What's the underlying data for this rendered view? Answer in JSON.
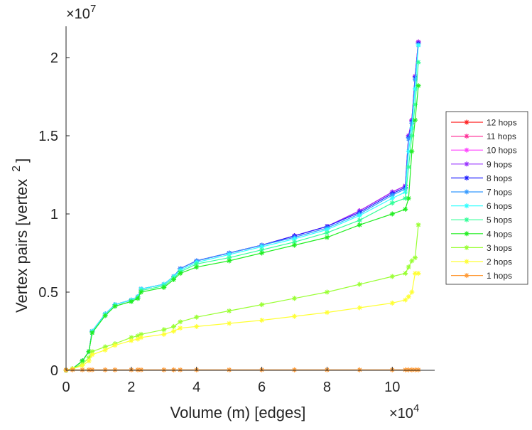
{
  "chart_data": {
    "type": "line",
    "title": "",
    "xlabel": "Volume (m) [edges]",
    "ylabel_parts": {
      "main": "Vertex pairs [vertex",
      "sup": "2",
      "close": "]"
    },
    "ylabel": "Vertex pairs [vertex^2]",
    "x_multiplier": {
      "base": "×10",
      "exp": "4"
    },
    "y_multiplier": {
      "base": "×10",
      "exp": "7"
    },
    "xlim": [
      0,
      11.3
    ],
    "ylim": [
      0,
      2.2
    ],
    "xticks": [
      0,
      2,
      4,
      6,
      8,
      10
    ],
    "xtick_labels": [
      "0",
      "2",
      "4",
      "6",
      "8",
      "10"
    ],
    "yticks": [
      0,
      0.5,
      1,
      1.5,
      2
    ],
    "ytick_labels": [
      "0",
      "0.5",
      "1",
      "1.5",
      "2"
    ],
    "grid": false,
    "legend_position": "outside-right",
    "x": [
      0,
      0.2,
      0.5,
      0.7,
      0.8,
      1.2,
      1.5,
      2,
      2.2,
      2.3,
      3,
      3.3,
      3.5,
      4,
      5,
      6,
      7,
      8,
      9,
      10,
      10.4,
      10.5,
      10.6,
      10.7,
      10.8
    ],
    "series": [
      {
        "name": "12 hops",
        "color": "#ff2020",
        "values": [
          0,
          0.01,
          0.06,
          0.12,
          0.25,
          0.36,
          0.42,
          0.45,
          0.47,
          0.52,
          0.55,
          0.6,
          0.65,
          0.7,
          0.75,
          0.8,
          0.86,
          0.92,
          1.02,
          1.14,
          1.18,
          1.5,
          1.6,
          1.88,
          2.1
        ]
      },
      {
        "name": "11 hops",
        "color": "#ff3399",
        "values": [
          0,
          0.01,
          0.06,
          0.12,
          0.25,
          0.36,
          0.42,
          0.45,
          0.47,
          0.52,
          0.55,
          0.6,
          0.65,
          0.7,
          0.75,
          0.8,
          0.86,
          0.92,
          1.02,
          1.14,
          1.18,
          1.5,
          1.6,
          1.88,
          2.1
        ]
      },
      {
        "name": "10 hops",
        "color": "#ff44ff",
        "values": [
          0,
          0.01,
          0.06,
          0.12,
          0.25,
          0.36,
          0.42,
          0.45,
          0.47,
          0.52,
          0.55,
          0.6,
          0.65,
          0.7,
          0.75,
          0.8,
          0.86,
          0.92,
          1.02,
          1.14,
          1.18,
          1.5,
          1.6,
          1.88,
          2.1
        ]
      },
      {
        "name": "9 hops",
        "color": "#9933ff",
        "values": [
          0,
          0.01,
          0.06,
          0.12,
          0.25,
          0.36,
          0.42,
          0.45,
          0.47,
          0.52,
          0.55,
          0.6,
          0.65,
          0.7,
          0.75,
          0.8,
          0.86,
          0.92,
          1.02,
          1.14,
          1.18,
          1.5,
          1.6,
          1.88,
          2.1
        ]
      },
      {
        "name": "8 hops",
        "color": "#2222ff",
        "values": [
          0,
          0.01,
          0.06,
          0.12,
          0.25,
          0.36,
          0.42,
          0.45,
          0.47,
          0.52,
          0.55,
          0.6,
          0.65,
          0.7,
          0.75,
          0.8,
          0.86,
          0.92,
          1.01,
          1.13,
          1.17,
          1.49,
          1.59,
          1.87,
          2.09
        ]
      },
      {
        "name": "7 hops",
        "color": "#3399ff",
        "values": [
          0,
          0.01,
          0.06,
          0.12,
          0.25,
          0.36,
          0.42,
          0.45,
          0.47,
          0.52,
          0.55,
          0.6,
          0.65,
          0.7,
          0.75,
          0.8,
          0.85,
          0.91,
          1.0,
          1.12,
          1.16,
          1.48,
          1.58,
          1.86,
          2.08
        ]
      },
      {
        "name": "6 hops",
        "color": "#33ffff",
        "values": [
          0,
          0.01,
          0.06,
          0.12,
          0.25,
          0.36,
          0.42,
          0.45,
          0.47,
          0.52,
          0.55,
          0.6,
          0.64,
          0.69,
          0.74,
          0.79,
          0.84,
          0.9,
          0.99,
          1.1,
          1.14,
          1.4,
          1.55,
          1.8,
          2.08
        ]
      },
      {
        "name": "5 hops",
        "color": "#33ff99",
        "values": [
          0,
          0.01,
          0.06,
          0.12,
          0.24,
          0.35,
          0.41,
          0.44,
          0.46,
          0.51,
          0.54,
          0.59,
          0.63,
          0.68,
          0.72,
          0.77,
          0.82,
          0.88,
          0.96,
          1.07,
          1.1,
          1.3,
          1.5,
          1.7,
          1.97
        ]
      },
      {
        "name": "4 hops",
        "color": "#22ee22",
        "values": [
          0,
          0.01,
          0.06,
          0.12,
          0.24,
          0.35,
          0.41,
          0.44,
          0.46,
          0.5,
          0.53,
          0.58,
          0.62,
          0.66,
          0.7,
          0.75,
          0.8,
          0.85,
          0.93,
          1.0,
          1.03,
          1.1,
          1.4,
          1.6,
          1.82
        ]
      },
      {
        "name": "3 hops",
        "color": "#99ff33",
        "values": [
          0,
          0.01,
          0.04,
          0.08,
          0.12,
          0.15,
          0.17,
          0.21,
          0.22,
          0.23,
          0.26,
          0.28,
          0.31,
          0.34,
          0.38,
          0.42,
          0.46,
          0.5,
          0.55,
          0.6,
          0.62,
          0.66,
          0.7,
          0.72,
          0.93
        ]
      },
      {
        "name": "2 hops",
        "color": "#ffff33",
        "values": [
          0,
          0.01,
          0.03,
          0.06,
          0.1,
          0.13,
          0.16,
          0.19,
          0.2,
          0.21,
          0.23,
          0.25,
          0.27,
          0.28,
          0.3,
          0.32,
          0.345,
          0.37,
          0.4,
          0.43,
          0.45,
          0.47,
          0.5,
          0.62,
          0.62
        ]
      },
      {
        "name": "1 hops",
        "color": "#ff9933",
        "values": [
          0.003,
          0.003,
          0.003,
          0.003,
          0.003,
          0.003,
          0.003,
          0.003,
          0.003,
          0.003,
          0.003,
          0.003,
          0.003,
          0.003,
          0.003,
          0.003,
          0.003,
          0.003,
          0.003,
          0.003,
          0.003,
          0.003,
          0.003,
          0.003,
          0.003
        ]
      }
    ]
  }
}
